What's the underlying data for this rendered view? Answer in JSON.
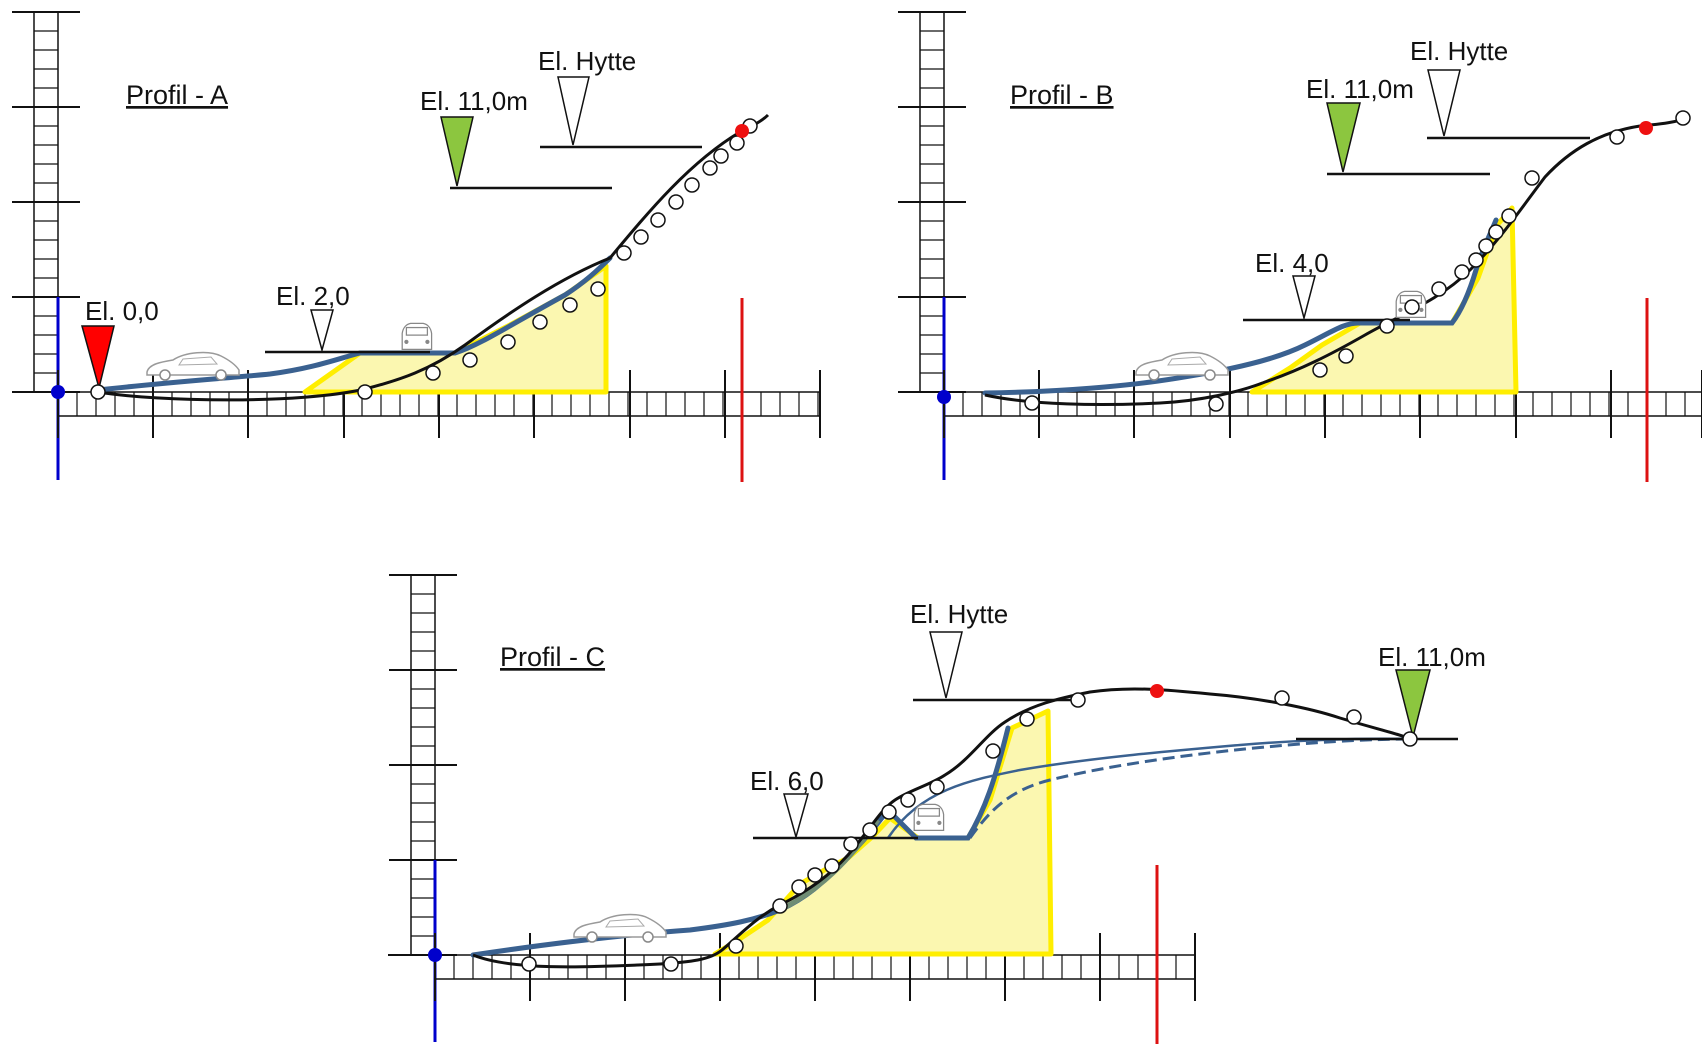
{
  "colors": {
    "background": "#ffffff",
    "ground_line": "#111111",
    "excavation_fill": "#fbf7b0",
    "excavation_outline": "#ffee00",
    "slope_surface": "#3a6190",
    "vertical_axis": "#0000cc",
    "boundary_marker": "#dd1111",
    "marker_red": "#ff0000",
    "marker_green": "#8cc63f",
    "marker_white": "#ffffff",
    "survey_point": "#ffffff",
    "summit_point": "#ee1111"
  },
  "profiles": [
    {
      "title": "Profil - A",
      "labels": {
        "origin": "El. 0,0",
        "low_level": "El. 2,0",
        "road_level": "El. 11,0m",
        "cabin_level": "El. Hytte"
      }
    },
    {
      "title": "Profil - B",
      "labels": {
        "low_level": "El. 4,0",
        "road_level": "El. 11,0m",
        "cabin_level": "El. Hytte"
      }
    },
    {
      "title": "Profil - C",
      "labels": {
        "low_level": "El. 6,0",
        "road_level": "El. 11,0m",
        "cabin_level": "El. Hytte"
      }
    }
  ]
}
